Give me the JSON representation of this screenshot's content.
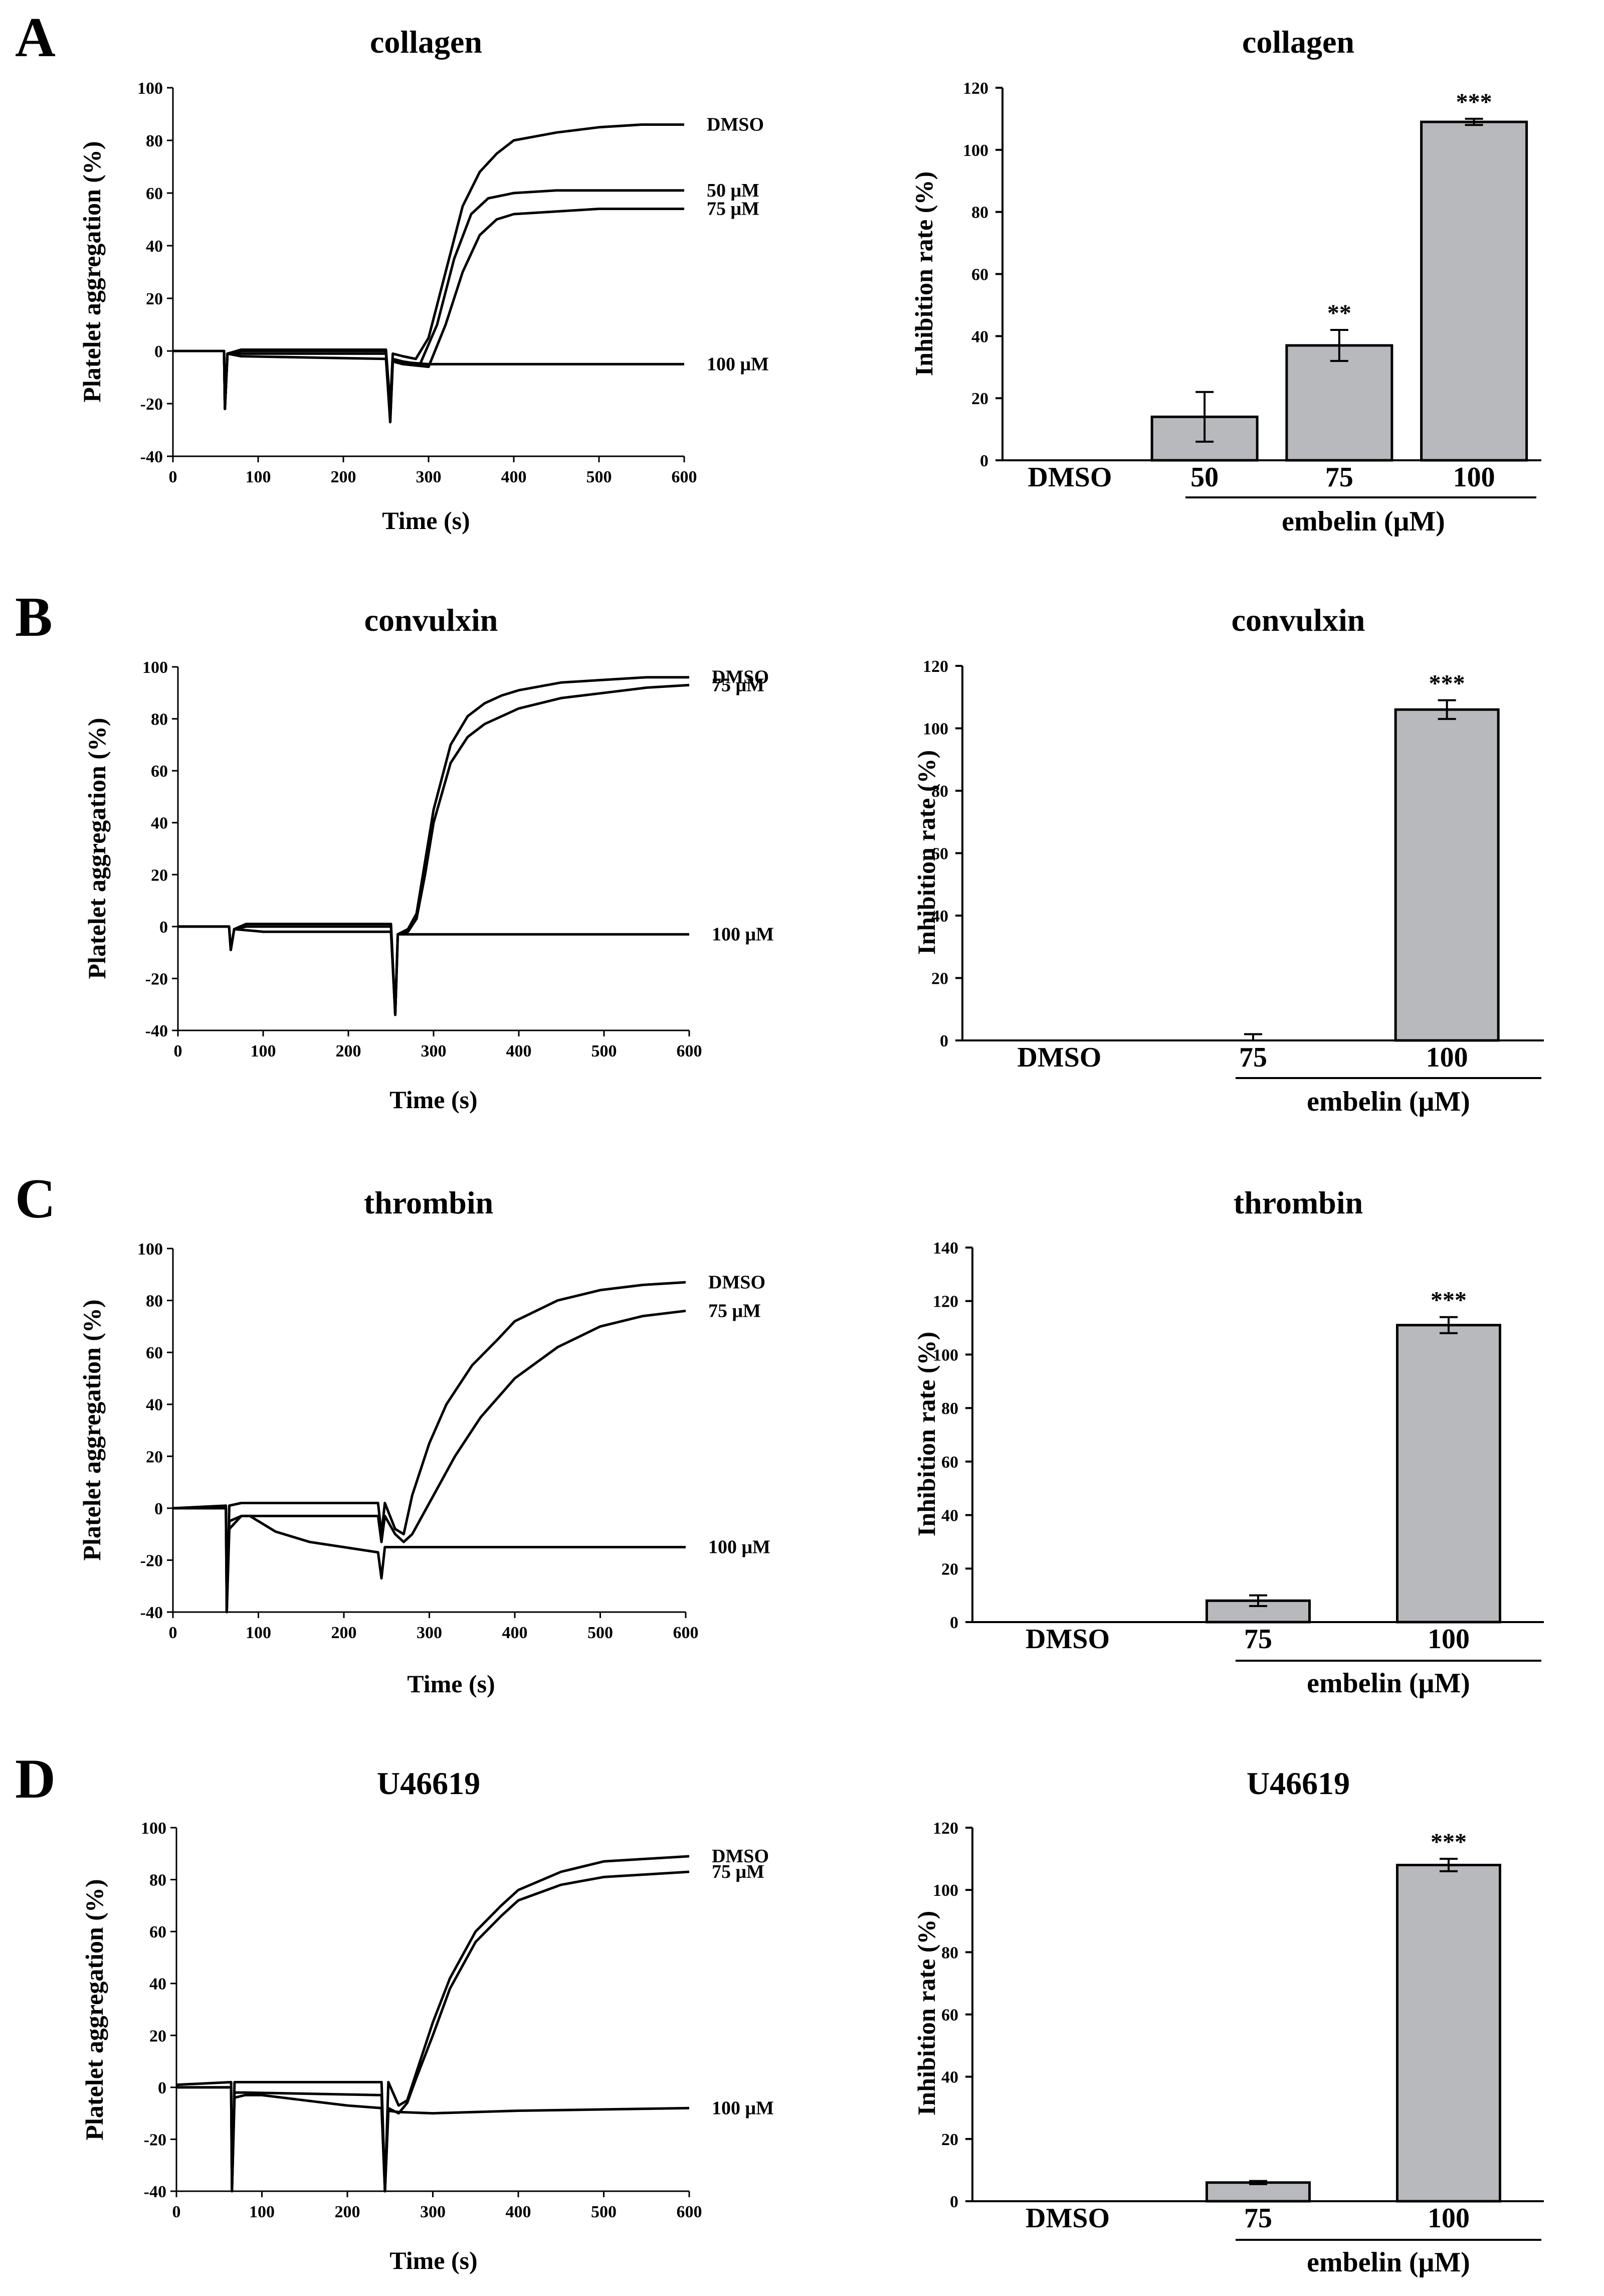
{
  "figure": {
    "panels": [
      {
        "letter": "A",
        "agonist": "collagen",
        "trace_ticks": {
          "x_labels": [
            "0",
            "100",
            "200",
            "300",
            "400",
            "500",
            "600"
          ],
          "y_labels": [
            "-40",
            "-20",
            "0",
            "20",
            "40",
            "60",
            "80",
            "100"
          ]
        },
        "bar_ticks": {
          "y_labels": [
            "0",
            "20",
            "40",
            "60",
            "80",
            "100",
            "120"
          ]
        },
        "curve_labels": [
          "DMSO",
          "50 μM",
          "75 μM",
          "100 μM"
        ],
        "bar_categories": [
          "DMSO",
          "50",
          "75",
          "100"
        ],
        "group_label": "embelin (μM)",
        "significance": [
          "",
          "",
          "**",
          "***"
        ]
      },
      {
        "letter": "B",
        "agonist": "convulxin",
        "trace_ticks": {
          "x_labels": [
            "0",
            "100",
            "200",
            "300",
            "400",
            "500",
            "600"
          ],
          "y_labels": [
            "-40",
            "-20",
            "0",
            "20",
            "40",
            "60",
            "80",
            "100"
          ]
        },
        "bar_ticks": {
          "y_labels": [
            "0",
            "20",
            "40",
            "60",
            "80",
            "100",
            "120"
          ]
        },
        "curve_labels": [
          "DMSO",
          "75 μM",
          "100 μM"
        ],
        "bar_categories": [
          "DMSO",
          "75",
          "100"
        ],
        "group_label": "embelin (μM)",
        "significance": [
          "",
          "",
          "***"
        ]
      },
      {
        "letter": "C",
        "agonist": "thrombin",
        "trace_ticks": {
          "x_labels": [
            "0",
            "100",
            "200",
            "300",
            "400",
            "500",
            "600"
          ],
          "y_labels": [
            "-40",
            "-20",
            "0",
            "20",
            "40",
            "60",
            "80",
            "100"
          ]
        },
        "bar_ticks": {
          "y_labels": [
            "0",
            "20",
            "40",
            "60",
            "80",
            "100",
            "120",
            "140"
          ]
        },
        "curve_labels": [
          "DMSO",
          "75 μM",
          "100 μM"
        ],
        "bar_categories": [
          "DMSO",
          "75",
          "100"
        ],
        "group_label": "embelin (μM)",
        "significance": [
          "",
          "",
          "***"
        ]
      },
      {
        "letter": "D",
        "agonist": "U46619",
        "trace_ticks": {
          "x_labels": [
            "0",
            "100",
            "200",
            "300",
            "400",
            "500",
            "600"
          ],
          "y_labels": [
            "-40",
            "-20",
            "0",
            "20",
            "40",
            "60",
            "80",
            "100"
          ]
        },
        "bar_ticks": {
          "y_labels": [
            "0",
            "20",
            "40",
            "60",
            "80",
            "100",
            "120"
          ]
        },
        "curve_labels": [
          "DMSO",
          "75 μM",
          "100 μM"
        ],
        "bar_categories": [
          "DMSO",
          "75",
          "100"
        ],
        "group_label": "embelin (μM)",
        "significance": [
          "",
          "",
          "***"
        ]
      }
    ],
    "axis_labels": {
      "trace_x": "Time (s)",
      "trace_y": "Platelet aggregation (%)",
      "bar_y": "Inhibition rate (%)"
    }
  },
  "chart_data": [
    {
      "panel": "A",
      "type": "line",
      "title": "collagen",
      "xlabel": "Time (s)",
      "ylabel": "Platelet aggregation (%)",
      "xlim": [
        0,
        600
      ],
      "ylim": [
        -40,
        100
      ],
      "series": [
        {
          "name": "DMSO",
          "x": [
            0,
            60,
            61,
            64,
            80,
            250,
            255,
            258,
            270,
            285,
            300,
            320,
            340,
            360,
            380,
            400,
            450,
            500,
            550,
            600
          ],
          "y": [
            0,
            0,
            -22,
            -1,
            0.5,
            0.5,
            -21,
            -1,
            -2,
            -3,
            5,
            30,
            55,
            68,
            75,
            80,
            83,
            85,
            86,
            86
          ]
        },
        {
          "name": "50 μM",
          "x": [
            0,
            60,
            61,
            64,
            80,
            250,
            255,
            258,
            270,
            290,
            310,
            330,
            350,
            370,
            400,
            450,
            500,
            550,
            600
          ],
          "y": [
            0,
            0,
            -22,
            -1,
            0,
            0,
            -25,
            -3,
            -4,
            -5,
            10,
            35,
            52,
            58,
            60,
            61,
            61,
            61,
            61
          ]
        },
        {
          "name": "75 μM",
          "x": [
            0,
            60,
            61,
            64,
            80,
            250,
            255,
            258,
            270,
            300,
            320,
            340,
            360,
            380,
            400,
            450,
            500,
            550,
            600
          ],
          "y": [
            0,
            0,
            -22,
            -1,
            -1,
            -1,
            -27,
            -4,
            -5,
            -6,
            10,
            30,
            44,
            50,
            52,
            53,
            54,
            54,
            54
          ]
        },
        {
          "name": "100 μM",
          "x": [
            0,
            60,
            61,
            64,
            80,
            250,
            255,
            258,
            280,
            300,
            400,
            500,
            600
          ],
          "y": [
            0,
            0,
            -22,
            -1,
            -2,
            -3,
            -27,
            -4,
            -4.5,
            -5,
            -5,
            -5,
            -5
          ]
        }
      ]
    },
    {
      "panel": "A",
      "type": "bar",
      "title": "collagen",
      "xlabel": "embelin (μM)",
      "ylabel": "Inhibition rate (%)",
      "ylim": [
        0,
        120
      ],
      "categories": [
        "DMSO",
        "50",
        "75",
        "100"
      ],
      "values": [
        0,
        14,
        37,
        109
      ],
      "errors": [
        0,
        8,
        5,
        1
      ]
    },
    {
      "panel": "B",
      "type": "line",
      "title": "convulxin",
      "xlabel": "Time (s)",
      "ylabel": "Platelet aggregation (%)",
      "xlim": [
        0,
        600
      ],
      "ylim": [
        -40,
        100
      ],
      "series": [
        {
          "name": "DMSO",
          "x": [
            0,
            60,
            62,
            66,
            80,
            250,
            255,
            258,
            270,
            280,
            290,
            300,
            320,
            340,
            360,
            380,
            400,
            450,
            500,
            550,
            600
          ],
          "y": [
            0,
            0,
            -9,
            -1,
            1,
            1,
            -34,
            -3,
            -1,
            5,
            25,
            45,
            70,
            81,
            86,
            89,
            91,
            94,
            95,
            96,
            96
          ]
        },
        {
          "name": "75 μM",
          "x": [
            0,
            60,
            62,
            66,
            80,
            250,
            255,
            258,
            270,
            280,
            290,
            300,
            320,
            340,
            360,
            380,
            400,
            450,
            500,
            550,
            600
          ],
          "y": [
            0,
            0,
            -9,
            -1,
            0,
            0,
            -34,
            -3,
            -2,
            3,
            20,
            40,
            63,
            73,
            78,
            81,
            84,
            88,
            90,
            92,
            93
          ]
        },
        {
          "name": "100 μM",
          "x": [
            0,
            60,
            62,
            66,
            100,
            250,
            255,
            258,
            300,
            400,
            500,
            600
          ],
          "y": [
            0,
            0,
            -9,
            -1,
            -2,
            -2,
            -34,
            -3,
            -3,
            -3,
            -3,
            -3
          ]
        }
      ]
    },
    {
      "panel": "B",
      "type": "bar",
      "title": "convulxin",
      "xlabel": "embelin (μM)",
      "ylabel": "Inhibition rate (%)",
      "ylim": [
        0,
        120
      ],
      "categories": [
        "DMSO",
        "75",
        "100"
      ],
      "values": [
        0,
        0,
        106
      ],
      "errors": [
        0,
        2,
        3
      ]
    },
    {
      "panel": "C",
      "type": "line",
      "title": "thrombin",
      "xlabel": "Time (s)",
      "ylabel": "Platelet aggregation (%)",
      "xlim": [
        0,
        600
      ],
      "ylim": [
        -40,
        100
      ],
      "series": [
        {
          "name": "DMSO",
          "x": [
            0,
            62,
            63,
            66,
            80,
            240,
            244,
            248,
            260,
            270,
            280,
            300,
            320,
            350,
            380,
            400,
            450,
            500,
            550,
            600
          ],
          "y": [
            0,
            1,
            -40,
            1,
            2,
            2,
            -10,
            2,
            -8,
            -10,
            5,
            25,
            40,
            55,
            65,
            72,
            80,
            84,
            86,
            87
          ]
        },
        {
          "name": "75 μM",
          "x": [
            0,
            62,
            63,
            66,
            80,
            240,
            244,
            248,
            260,
            270,
            280,
            300,
            330,
            360,
            400,
            450,
            500,
            550,
            600
          ],
          "y": [
            0,
            0,
            -40,
            -5,
            -3,
            -3,
            -13,
            -3,
            -10,
            -13,
            -10,
            2,
            20,
            35,
            50,
            62,
            70,
            74,
            76
          ]
        },
        {
          "name": "100 μM",
          "x": [
            0,
            62,
            63,
            66,
            80,
            90,
            120,
            160,
            200,
            240,
            244,
            248,
            260,
            300,
            400,
            500,
            600
          ],
          "y": [
            0,
            0,
            -40,
            -8,
            -3,
            -3,
            -9,
            -13,
            -15,
            -17,
            -27,
            -15,
            -15,
            -15,
            -15,
            -15,
            -15
          ]
        }
      ]
    },
    {
      "panel": "C",
      "type": "bar",
      "title": "thrombin",
      "xlabel": "embelin (μM)",
      "ylabel": "Inhibition rate (%)",
      "ylim": [
        0,
        140
      ],
      "categories": [
        "DMSO",
        "75",
        "100"
      ],
      "values": [
        0,
        8,
        111
      ],
      "errors": [
        0,
        2,
        3
      ]
    },
    {
      "panel": "D",
      "type": "line",
      "title": "U46619",
      "xlabel": "Time (s)",
      "ylabel": "Platelet aggregation (%)",
      "xlim": [
        0,
        600
      ],
      "ylim": [
        -40,
        100
      ],
      "series": [
        {
          "name": "DMSO",
          "x": [
            0,
            64,
            65,
            68,
            80,
            240,
            244,
            248,
            260,
            270,
            280,
            300,
            320,
            350,
            380,
            400,
            450,
            500,
            550,
            600
          ],
          "y": [
            1,
            2,
            -40,
            2,
            2,
            2,
            -40,
            2,
            -7,
            -5,
            5,
            25,
            42,
            60,
            70,
            76,
            83,
            87,
            88,
            89
          ]
        },
        {
          "name": "75 μM",
          "x": [
            0,
            64,
            65,
            68,
            80,
            240,
            244,
            248,
            260,
            270,
            280,
            300,
            320,
            350,
            380,
            400,
            450,
            500,
            550,
            600
          ],
          "y": [
            0,
            0,
            -40,
            -2,
            -2,
            -3,
            -40,
            -8,
            -10,
            -6,
            3,
            20,
            38,
            56,
            66,
            72,
            78,
            81,
            82,
            83
          ]
        },
        {
          "name": "100 μM",
          "x": [
            0,
            64,
            65,
            68,
            80,
            100,
            150,
            200,
            240,
            244,
            248,
            260,
            300,
            400,
            500,
            600
          ],
          "y": [
            0,
            0,
            -40,
            -4,
            -3,
            -3,
            -5,
            -7,
            -8,
            -40,
            -9,
            -9.5,
            -10,
            -9,
            -8.5,
            -8
          ]
        }
      ]
    },
    {
      "panel": "D",
      "type": "bar",
      "title": "U46619",
      "xlabel": "embelin (μM)",
      "ylabel": "Inhibition rate (%)",
      "ylim": [
        0,
        120
      ],
      "categories": [
        "DMSO",
        "75",
        "100"
      ],
      "values": [
        0,
        6,
        108
      ],
      "errors": [
        0,
        0.5,
        2
      ]
    }
  ]
}
